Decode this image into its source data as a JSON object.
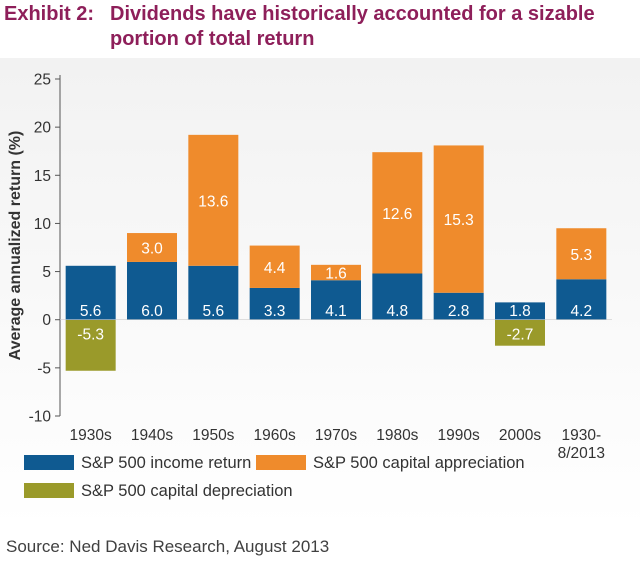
{
  "header": {
    "label": "Exhibit 2:",
    "title": "Dividends have historically accounted for a sizable portion of total return"
  },
  "source": "Source: Ned Davis Research, August 2013",
  "colors": {
    "income": "#0f5a91",
    "appreciation": "#ef8b2c",
    "depreciation": "#9a9a2a",
    "title": "#8e1f5a"
  },
  "chart_data": {
    "type": "bar",
    "stacked": true,
    "title": "Dividends have historically accounted for a sizable portion of total return",
    "xlabel": "",
    "ylabel": "Average annualized return (%)",
    "ylim": [
      -10,
      25
    ],
    "yticks": [
      -10,
      -5,
      0,
      5,
      10,
      15,
      20,
      25
    ],
    "grid": false,
    "legend_position": "bottom",
    "categories": [
      [
        "1930s"
      ],
      [
        "1940s"
      ],
      [
        "1950s"
      ],
      [
        "1960s"
      ],
      [
        "1970s"
      ],
      [
        "1980s"
      ],
      [
        "1990s"
      ],
      [
        "2000s"
      ],
      [
        "1930-",
        "8/2013"
      ]
    ],
    "series": [
      {
        "name": "S&P 500 income return",
        "color": "#0f5a91",
        "values": [
          5.6,
          6.0,
          5.6,
          3.3,
          4.1,
          4.8,
          2.8,
          1.8,
          4.2
        ]
      },
      {
        "name": "S&P 500 capital appreciation",
        "color": "#ef8b2c",
        "values": [
          null,
          3.0,
          13.6,
          4.4,
          1.6,
          12.6,
          15.3,
          null,
          5.3
        ]
      },
      {
        "name": "S&P 500 capital depreciation",
        "color": "#9a9a2a",
        "values": [
          -5.3,
          null,
          null,
          null,
          null,
          null,
          null,
          -2.7,
          null
        ]
      }
    ]
  }
}
